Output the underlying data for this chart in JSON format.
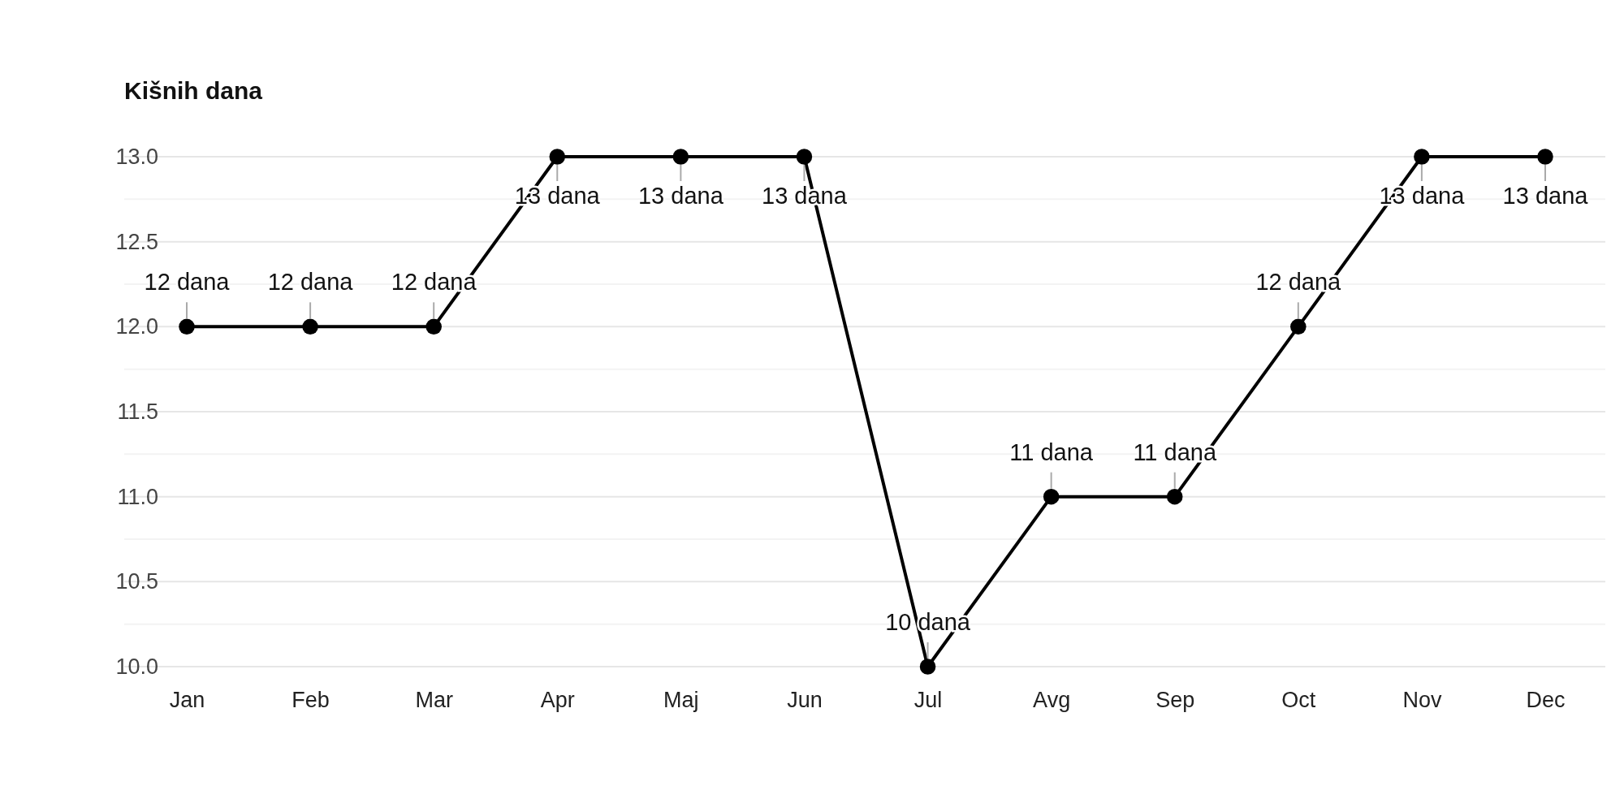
{
  "chart_data": {
    "type": "line",
    "ylabel": "Kišnih dana",
    "categories": [
      "Jan",
      "Feb",
      "Mar",
      "Apr",
      "Maj",
      "Jun",
      "Jul",
      "Avg",
      "Sep",
      "Oct",
      "Nov",
      "Dec"
    ],
    "series": [
      {
        "color": "#000000",
        "values": [
          12,
          12,
          12,
          13,
          13,
          13,
          10,
          11,
          11,
          12,
          13,
          13
        ],
        "value_labels": [
          "12 dana",
          "12 dana",
          "12 dana",
          "13 dana",
          "13 dana",
          "13 dana",
          "10 dana",
          "11 dana",
          "11 dana",
          "12 dana",
          "13 dana",
          "13 dana"
        ]
      }
    ],
    "ylim": [
      10,
      13
    ],
    "yticks": [
      {
        "value": 10,
        "label": "10.0"
      },
      {
        "value": 10.25,
        "label": null
      },
      10.5,
      {
        "value": 10.75,
        "label": null
      },
      {
        "value": 11,
        "label": "11.0"
      },
      {
        "value": 11.25,
        "label": null
      },
      11.5,
      {
        "value": 11.75,
        "label": null
      },
      {
        "value": 12,
        "label": "12.0"
      },
      {
        "value": 12.25,
        "label": null
      },
      12.5,
      {
        "value": 12.75,
        "label": null
      },
      {
        "value": 13,
        "label": "13.0"
      }
    ],
    "grid": "y",
    "marker": "circle",
    "line_style": "solid"
  }
}
